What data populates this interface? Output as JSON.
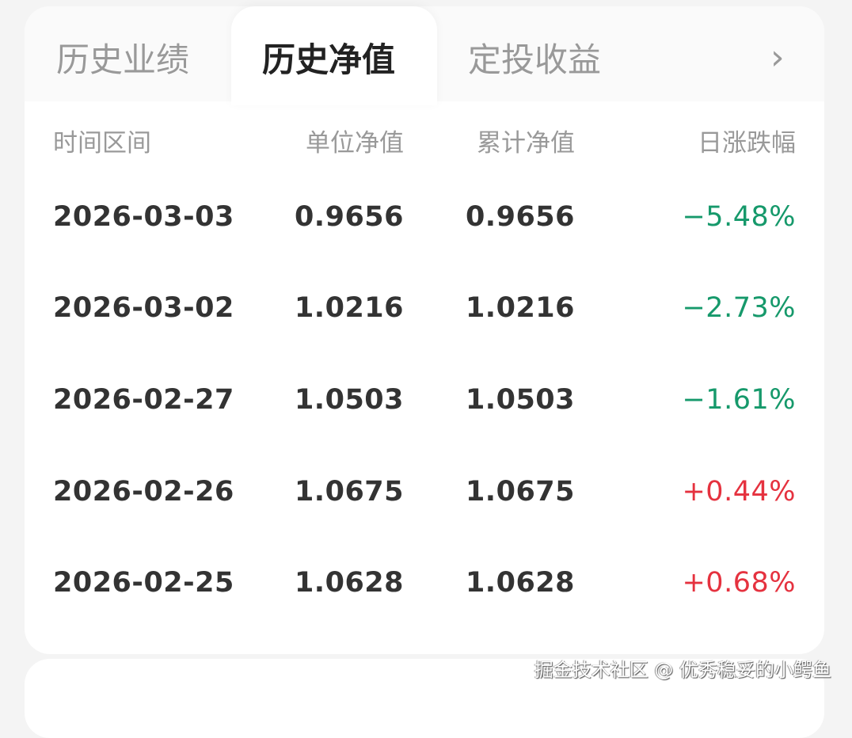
{
  "tabs": [
    {
      "label": "历史业绩",
      "active": false
    },
    {
      "label": "历史净值",
      "active": true
    },
    {
      "label": "定投收益",
      "active": false
    }
  ],
  "more_icon": "chevron-right-icon",
  "columns": [
    "时间区间",
    "单位净值",
    "累计净值",
    "日涨跌幅"
  ],
  "rows": [
    {
      "date": "2026-03-03",
      "unit_nav": "0.9656",
      "acc_nav": "0.9656",
      "change": "−5.48%",
      "trend": "down"
    },
    {
      "date": "2026-03-02",
      "unit_nav": "1.0216",
      "acc_nav": "1.0216",
      "change": "−2.73%",
      "trend": "down"
    },
    {
      "date": "2026-02-27",
      "unit_nav": "1.0503",
      "acc_nav": "1.0503",
      "change": "−1.61%",
      "trend": "down"
    },
    {
      "date": "2026-02-26",
      "unit_nav": "1.0675",
      "acc_nav": "1.0675",
      "change": "+0.44%",
      "trend": "up"
    },
    {
      "date": "2026-02-25",
      "unit_nav": "1.0628",
      "acc_nav": "1.0628",
      "change": "+0.68%",
      "trend": "up"
    }
  ],
  "colors": {
    "down": "#16996b",
    "up": "#e5323f"
  },
  "watermark": "掘金技术社区 @ 优秀稳妥的小鳄鱼"
}
